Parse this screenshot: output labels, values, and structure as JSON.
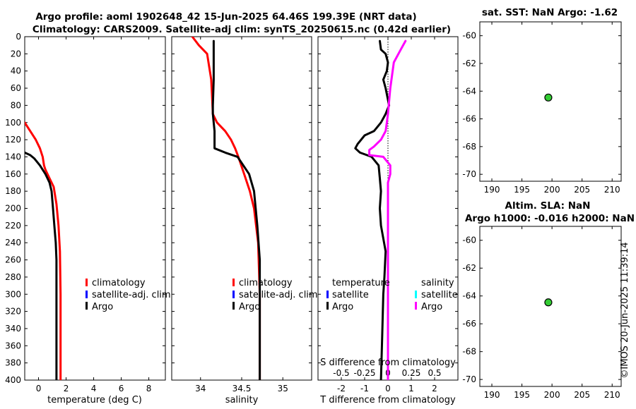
{
  "header": {
    "title_line1": "Argo profile: aoml 1902648_42 15-Jun-2025 64.46S 199.39E (NRT data)",
    "title_line2": "Climatology: CARS2009. Satellite-adj clim: synTS_20250615.nc (0.42d earlier)"
  },
  "footer": {
    "timestamp": "©IMOS 20-Jun-2025 11:39:14"
  },
  "colors": {
    "climatology": "#ff0000",
    "satellite": "#0000ff",
    "satellite_salinity": "#00ffff",
    "argo_temp": "#000000",
    "argo_salinity": "#ff00ff",
    "marker": "#33cc33"
  },
  "chart_data": [
    {
      "id": "temperature",
      "type": "line",
      "xlabel": "temperature (deg C)",
      "xlim": [
        -1,
        9.2
      ],
      "ylim": [
        0,
        400
      ],
      "y_reversed": true,
      "xticks": [
        0,
        2,
        4,
        6,
        8
      ],
      "xtick_labels": [
        "0",
        "2",
        "4",
        "6",
        "8"
      ],
      "yticks": [
        0,
        20,
        40,
        60,
        80,
        100,
        120,
        140,
        160,
        180,
        200,
        220,
        240,
        260,
        280,
        300,
        320,
        340,
        360,
        380,
        400
      ],
      "ytick_labels": [
        "0",
        "20",
        "40",
        "60",
        "80",
        "100",
        "120",
        "140",
        "160",
        "180",
        "200",
        "220",
        "240",
        "260",
        "280",
        "300",
        "320",
        "340",
        "360",
        "380",
        "400"
      ],
      "legend": [
        "climatology",
        "satellite-adj. clim",
        "Argo"
      ],
      "series": [
        {
          "name": "climatology",
          "color": "#ff0000",
          "x": [
            -1.0,
            -0.6,
            -0.2,
            0.1,
            0.3,
            0.4,
            0.5,
            0.8,
            1.1,
            1.3,
            1.45,
            1.55,
            1.6,
            1.6
          ],
          "y": [
            100,
            110,
            120,
            130,
            140,
            150,
            155,
            165,
            175,
            195,
            220,
            250,
            300,
            400
          ]
        },
        {
          "name": "Argo",
          "color": "#000000",
          "x": [
            -1.0,
            -0.6,
            -0.3,
            0.1,
            0.5,
            0.8,
            0.95,
            1.05,
            1.15,
            1.25,
            1.3,
            1.3,
            1.3
          ],
          "y": [
            135,
            138,
            142,
            150,
            160,
            170,
            180,
            200,
            220,
            240,
            260,
            300,
            400
          ]
        }
      ]
    },
    {
      "id": "salinity",
      "type": "line",
      "xlabel": "salinity",
      "xlim": [
        33.65,
        35.35
      ],
      "ylim": [
        0,
        400
      ],
      "y_reversed": true,
      "xticks": [
        34,
        34.5,
        35
      ],
      "xtick_labels": [
        "34",
        "34.5",
        "35"
      ],
      "legend": [
        "climatology",
        "satellite-adj. clim",
        "Argo"
      ],
      "series": [
        {
          "name": "climatology",
          "color": "#ff0000",
          "x": [
            33.9,
            33.98,
            34.08,
            34.13,
            34.14,
            34.15,
            34.2,
            34.3,
            34.37,
            34.42,
            34.46,
            34.53,
            34.6,
            34.65,
            34.7,
            34.72,
            34.72
          ],
          "y": [
            0,
            10,
            20,
            50,
            70,
            90,
            100,
            110,
            120,
            130,
            140,
            160,
            180,
            200,
            240,
            300,
            400
          ]
        },
        {
          "name": "Argo",
          "color": "#000000",
          "x": [
            34.16,
            34.16,
            34.15,
            34.15,
            34.16,
            34.17,
            34.17,
            34.3,
            34.45,
            34.52,
            34.59,
            34.65,
            34.69,
            34.72,
            34.72,
            34.72
          ],
          "y": [
            5,
            50,
            80,
            90,
            100,
            110,
            130,
            135,
            140,
            150,
            160,
            180,
            220,
            260,
            300,
            400
          ]
        }
      ]
    },
    {
      "id": "differences",
      "type": "line",
      "xlabel": "T difference from climatology",
      "top_label": "S difference from climatology",
      "xlim": [
        -3,
        3
      ],
      "ylim": [
        0,
        400
      ],
      "y_reversed": true,
      "zero_line": true,
      "xticks": [
        -2,
        -1,
        0,
        1,
        2
      ],
      "xtick_labels": [
        "-2",
        "-1",
        "0",
        "1",
        "2"
      ],
      "sticks": [
        -0.5,
        -0.25,
        0,
        0.25,
        0.5
      ],
      "stick_labels": [
        "-0.5",
        "-0.25",
        "0",
        "0.25",
        "0.5"
      ],
      "legend_temperature_title": "temperature",
      "legend_temperature": [
        "satellite",
        "Argo"
      ],
      "legend_salinity_title": "salinity",
      "legend_salinity": [
        "satellite",
        "Argo"
      ],
      "series": [
        {
          "name": "T difference Argo",
          "color": "#000000",
          "x": [
            -0.35,
            -0.3,
            -0.1,
            0.0,
            -0.05,
            -0.2,
            -0.1,
            0.05,
            -0.1,
            -0.3,
            -0.6,
            -1.0,
            -1.3,
            -1.4,
            -1.2,
            -0.7,
            -0.4,
            -0.35,
            -0.3,
            -0.35,
            -0.3,
            -0.1,
            -0.15,
            -0.2,
            -0.25,
            -0.3
          ],
          "y": [
            5,
            15,
            20,
            30,
            40,
            50,
            60,
            80,
            90,
            100,
            110,
            115,
            125,
            130,
            135,
            140,
            150,
            165,
            180,
            200,
            220,
            250,
            280,
            300,
            350,
            400
          ]
        },
        {
          "name": "S difference Argo",
          "color": "#ff00ff",
          "x": [
            0.75,
            0.55,
            0.25,
            0.1,
            0.0,
            -0.05,
            -0.1,
            -0.3,
            -0.6,
            -0.8,
            -0.8,
            -0.2,
            0.1,
            0.1,
            0.0,
            0.0,
            0.0,
            0.0,
            0.0
          ],
          "y": [
            5,
            15,
            30,
            60,
            90,
            100,
            110,
            120,
            128,
            132,
            138,
            140,
            150,
            160,
            170,
            200,
            300,
            350,
            400
          ]
        }
      ]
    },
    {
      "id": "sst_map",
      "type": "scatter",
      "title": "sat. SST: NaN Argo: -1.62",
      "xlim": [
        188,
        211.5
      ],
      "ylim": [
        -70.5,
        -59
      ],
      "xticks": [
        190,
        195,
        200,
        205,
        210
      ],
      "xtick_labels": [
        "190",
        "195",
        "200",
        "205",
        "210"
      ],
      "yticks": [
        -60,
        -62,
        -64,
        -66,
        -68,
        -70
      ],
      "ytick_labels": [
        "-60",
        "-62",
        "-64",
        "-66",
        "-68",
        "-70"
      ],
      "points": [
        {
          "x": 199.39,
          "y": -64.46
        }
      ]
    },
    {
      "id": "sla_map",
      "type": "scatter",
      "title_line1": "Altim. SLA: NaN",
      "title_line2": "Argo h1000: -0.016 h2000: NaN",
      "xlim": [
        188,
        211.5
      ],
      "ylim": [
        -70.5,
        -59
      ],
      "xticks": [
        190,
        195,
        200,
        205,
        210
      ],
      "xtick_labels": [
        "190",
        "195",
        "200",
        "205",
        "210"
      ],
      "yticks": [
        -60,
        -62,
        -64,
        -66,
        -68,
        -70
      ],
      "ytick_labels": [
        "-60",
        "-62",
        "-64",
        "-66",
        "-68",
        "-70"
      ],
      "points": [
        {
          "x": 199.39,
          "y": -64.46
        }
      ]
    }
  ]
}
